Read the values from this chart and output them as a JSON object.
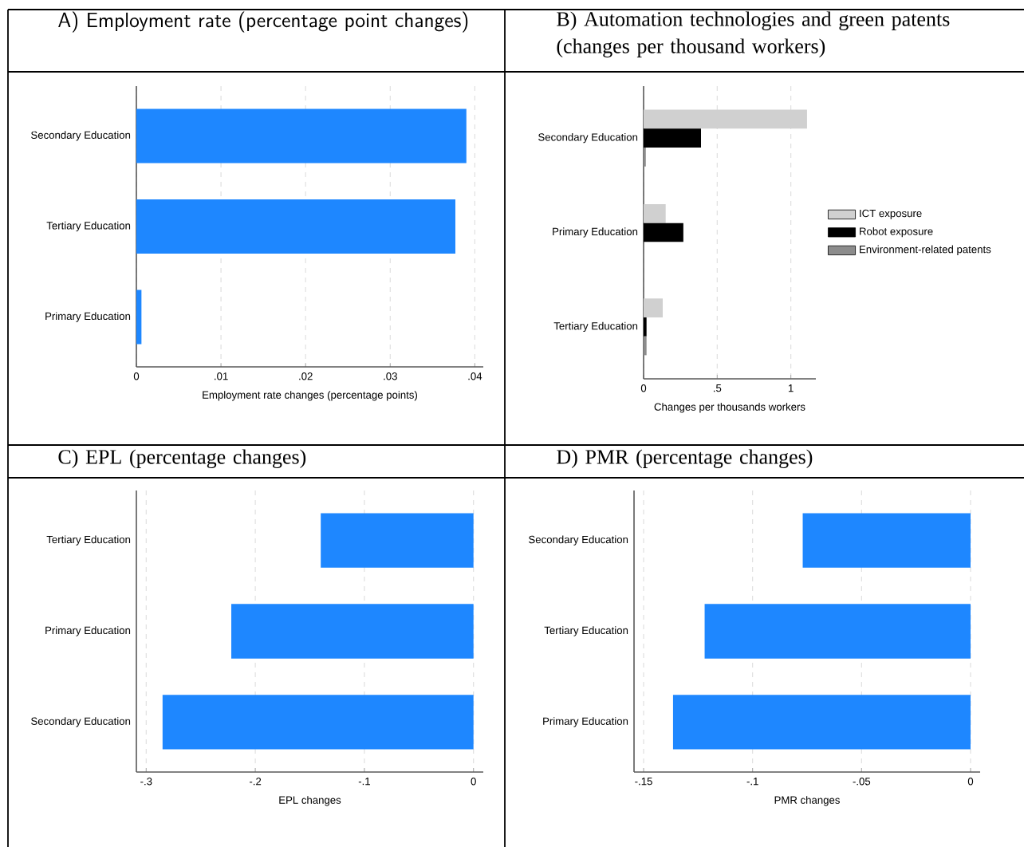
{
  "chart_data": [
    {
      "type": "bar",
      "orientation": "horizontal",
      "title": "A) Employment rate (percentage point changes)",
      "xlabel": "Employment rate changes (percentage points)",
      "categories": [
        "Secondary Education",
        "Tertiary Education",
        "Primary Education"
      ],
      "values": [
        0.039,
        0.0377,
        0.0006
      ],
      "color": "#1e87ff",
      "xlim": [
        0,
        0.041
      ],
      "xticks": [
        0,
        {
          "value": 0.01,
          "label": ".01"
        },
        {
          "value": 0.02,
          "label": ".02"
        },
        {
          "value": 0.03,
          "label": ".03"
        },
        {
          "value": 0.04,
          "label": ".04"
        }
      ],
      "grid": "x"
    },
    {
      "type": "bar",
      "orientation": "horizontal",
      "title": "B) Automation technologies and green patents (changes per thousand workers)",
      "xlabel": "Changes per thousands workers",
      "categories": [
        "Secondary Education",
        "Primary Education",
        "Tertiary Education"
      ],
      "series": [
        {
          "name": "ICT exposure",
          "color": "#d0d0d0",
          "values": [
            1.11,
            0.15,
            0.13
          ]
        },
        {
          "name": "Robot exposure",
          "color": "#000000",
          "values": [
            0.39,
            0.27,
            0.02
          ]
        },
        {
          "name": "Environment-related patents",
          "color": "#8c8c8c",
          "values": [
            0.015,
            null,
            0.02
          ]
        }
      ],
      "xlim": [
        0,
        1.17
      ],
      "xticks": [
        0,
        {
          "value": 0.5,
          "label": ".5"
        },
        1
      ],
      "grid": "x",
      "legend": "right"
    },
    {
      "type": "bar",
      "orientation": "horizontal",
      "title": "C) EPL (percentage changes)",
      "xlabel": "EPL changes",
      "categories": [
        "Tertiary Education",
        "Primary Education",
        "Secondary Education"
      ],
      "values": [
        -0.14,
        -0.222,
        -0.285
      ],
      "color": "#1e87ff",
      "xlim": [
        -0.309,
        0.009
      ],
      "xticks": [
        {
          "value": -0.3,
          "label": "-.3"
        },
        {
          "value": -0.2,
          "label": "-.2"
        },
        {
          "value": -0.1,
          "label": "-.1"
        },
        0
      ],
      "grid": "x"
    },
    {
      "type": "bar",
      "orientation": "horizontal",
      "title": "D) PMR (percentage changes)",
      "xlabel": "PMR changes",
      "categories": [
        "Secondary Education",
        "Tertiary Education",
        "Primary Education"
      ],
      "values": [
        -0.077,
        -0.122,
        -0.1365
      ],
      "color": "#1e87ff",
      "xlim": [
        -0.1544,
        0.0044
      ],
      "xticks": [
        {
          "value": -0.15,
          "label": "-.15"
        },
        {
          "value": -0.1,
          "label": "-.1"
        },
        {
          "value": -0.05,
          "label": "-.05"
        },
        0
      ],
      "grid": "x"
    }
  ]
}
